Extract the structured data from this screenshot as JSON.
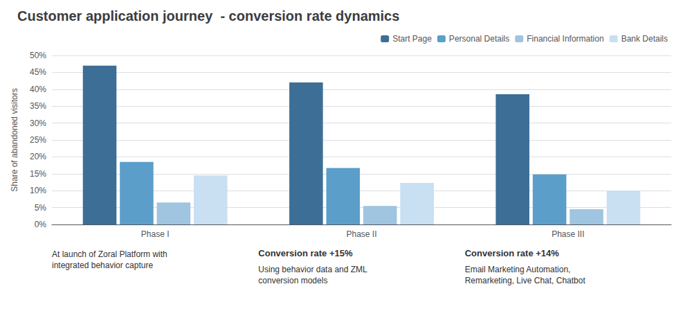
{
  "chart_data": {
    "type": "bar",
    "title": "Customer application journey  - conversion rate dynamics",
    "ylabel": "Share of abandoned visitors",
    "categories": [
      "Phase I",
      "Phase II",
      "Phase III"
    ],
    "series": [
      {
        "name": "Start Page",
        "color": "#3d6e96",
        "values": [
          0.47,
          0.42,
          0.385
        ]
      },
      {
        "name": "Personal Details",
        "color": "#5b9ec9",
        "values": [
          0.185,
          0.167,
          0.148
        ]
      },
      {
        "name": "Financial Information",
        "color": "#9fc5e0",
        "values": [
          0.065,
          0.055,
          0.045
        ]
      },
      {
        "name": "Bank Details",
        "color": "#c9dff2",
        "values": [
          0.145,
          0.123,
          0.1
        ]
      }
    ],
    "ylim": [
      0,
      0.5
    ],
    "yticks": [
      {
        "value": 0,
        "label": "0%"
      },
      {
        "value": 0.05,
        "label": "5%"
      },
      {
        "value": 0.1,
        "label": "10%"
      },
      {
        "value": 0.15,
        "label": "15%"
      },
      {
        "value": 0.2,
        "label": "20%"
      },
      {
        "value": 0.25,
        "label": "25%"
      },
      {
        "value": 0.3,
        "label": "30%"
      },
      {
        "value": 0.35,
        "label": "35%"
      },
      {
        "value": 0.4,
        "label": "40%"
      },
      {
        "value": 0.45,
        "label": "45%"
      },
      {
        "value": 0.5,
        "label": "50%"
      }
    ],
    "grid": true,
    "legend": "upper right",
    "annotations": [
      {
        "text": "At launch of Zoral Platform with\nintegrated behavior capture"
      },
      {
        "title": "Conversion rate +15%",
        "text": "Using behavior data and ZML\nconversion models"
      },
      {
        "title": "Conversion rate +14%",
        "text": "Email Marketing Automation,\nRemarketing, Live Chat, Chatbot"
      }
    ]
  }
}
